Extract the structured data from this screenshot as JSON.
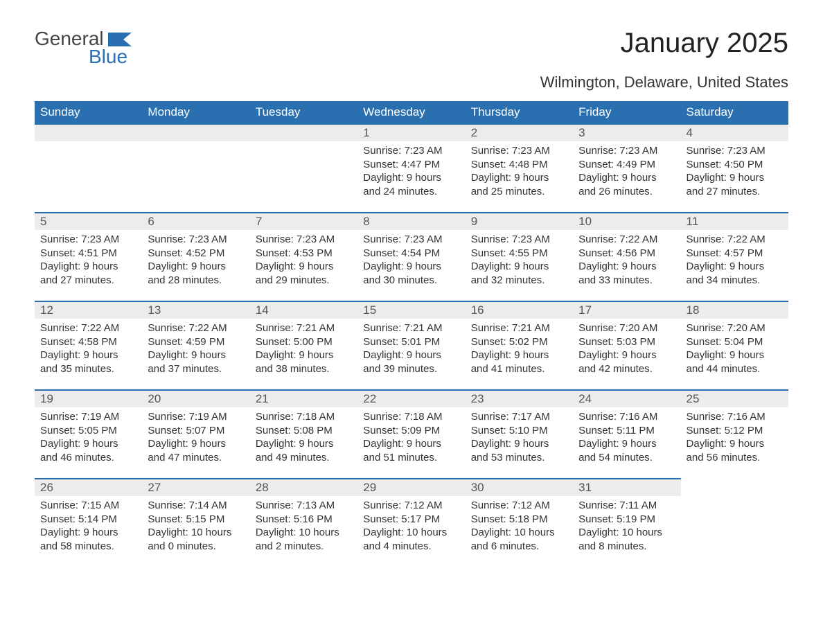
{
  "brand": {
    "word1": "General",
    "word2": "Blue"
  },
  "title": "January 2025",
  "subtitle": "Wilmington, Delaware, United States",
  "colors": {
    "header_bg": "#2a6fb0",
    "header_text": "#ffffff",
    "daynum_bg": "#ececec",
    "daynum_border": "#2a6fb0",
    "body_text": "#333333",
    "page_bg": "#ffffff",
    "logo_gray": "#444444",
    "logo_blue": "#2a6fb0"
  },
  "weekdays": [
    "Sunday",
    "Monday",
    "Tuesday",
    "Wednesday",
    "Thursday",
    "Friday",
    "Saturday"
  ],
  "weeks": [
    [
      null,
      null,
      null,
      {
        "n": "1",
        "sunrise": "7:23 AM",
        "sunset": "4:47 PM",
        "daylight": "9 hours and 24 minutes."
      },
      {
        "n": "2",
        "sunrise": "7:23 AM",
        "sunset": "4:48 PM",
        "daylight": "9 hours and 25 minutes."
      },
      {
        "n": "3",
        "sunrise": "7:23 AM",
        "sunset": "4:49 PM",
        "daylight": "9 hours and 26 minutes."
      },
      {
        "n": "4",
        "sunrise": "7:23 AM",
        "sunset": "4:50 PM",
        "daylight": "9 hours and 27 minutes."
      }
    ],
    [
      {
        "n": "5",
        "sunrise": "7:23 AM",
        "sunset": "4:51 PM",
        "daylight": "9 hours and 27 minutes."
      },
      {
        "n": "6",
        "sunrise": "7:23 AM",
        "sunset": "4:52 PM",
        "daylight": "9 hours and 28 minutes."
      },
      {
        "n": "7",
        "sunrise": "7:23 AM",
        "sunset": "4:53 PM",
        "daylight": "9 hours and 29 minutes."
      },
      {
        "n": "8",
        "sunrise": "7:23 AM",
        "sunset": "4:54 PM",
        "daylight": "9 hours and 30 minutes."
      },
      {
        "n": "9",
        "sunrise": "7:23 AM",
        "sunset": "4:55 PM",
        "daylight": "9 hours and 32 minutes."
      },
      {
        "n": "10",
        "sunrise": "7:22 AM",
        "sunset": "4:56 PM",
        "daylight": "9 hours and 33 minutes."
      },
      {
        "n": "11",
        "sunrise": "7:22 AM",
        "sunset": "4:57 PM",
        "daylight": "9 hours and 34 minutes."
      }
    ],
    [
      {
        "n": "12",
        "sunrise": "7:22 AM",
        "sunset": "4:58 PM",
        "daylight": "9 hours and 35 minutes."
      },
      {
        "n": "13",
        "sunrise": "7:22 AM",
        "sunset": "4:59 PM",
        "daylight": "9 hours and 37 minutes."
      },
      {
        "n": "14",
        "sunrise": "7:21 AM",
        "sunset": "5:00 PM",
        "daylight": "9 hours and 38 minutes."
      },
      {
        "n": "15",
        "sunrise": "7:21 AM",
        "sunset": "5:01 PM",
        "daylight": "9 hours and 39 minutes."
      },
      {
        "n": "16",
        "sunrise": "7:21 AM",
        "sunset": "5:02 PM",
        "daylight": "9 hours and 41 minutes."
      },
      {
        "n": "17",
        "sunrise": "7:20 AM",
        "sunset": "5:03 PM",
        "daylight": "9 hours and 42 minutes."
      },
      {
        "n": "18",
        "sunrise": "7:20 AM",
        "sunset": "5:04 PM",
        "daylight": "9 hours and 44 minutes."
      }
    ],
    [
      {
        "n": "19",
        "sunrise": "7:19 AM",
        "sunset": "5:05 PM",
        "daylight": "9 hours and 46 minutes."
      },
      {
        "n": "20",
        "sunrise": "7:19 AM",
        "sunset": "5:07 PM",
        "daylight": "9 hours and 47 minutes."
      },
      {
        "n": "21",
        "sunrise": "7:18 AM",
        "sunset": "5:08 PM",
        "daylight": "9 hours and 49 minutes."
      },
      {
        "n": "22",
        "sunrise": "7:18 AM",
        "sunset": "5:09 PM",
        "daylight": "9 hours and 51 minutes."
      },
      {
        "n": "23",
        "sunrise": "7:17 AM",
        "sunset": "5:10 PM",
        "daylight": "9 hours and 53 minutes."
      },
      {
        "n": "24",
        "sunrise": "7:16 AM",
        "sunset": "5:11 PM",
        "daylight": "9 hours and 54 minutes."
      },
      {
        "n": "25",
        "sunrise": "7:16 AM",
        "sunset": "5:12 PM",
        "daylight": "9 hours and 56 minutes."
      }
    ],
    [
      {
        "n": "26",
        "sunrise": "7:15 AM",
        "sunset": "5:14 PM",
        "daylight": "9 hours and 58 minutes."
      },
      {
        "n": "27",
        "sunrise": "7:14 AM",
        "sunset": "5:15 PM",
        "daylight": "10 hours and 0 minutes."
      },
      {
        "n": "28",
        "sunrise": "7:13 AM",
        "sunset": "5:16 PM",
        "daylight": "10 hours and 2 minutes."
      },
      {
        "n": "29",
        "sunrise": "7:12 AM",
        "sunset": "5:17 PM",
        "daylight": "10 hours and 4 minutes."
      },
      {
        "n": "30",
        "sunrise": "7:12 AM",
        "sunset": "5:18 PM",
        "daylight": "10 hours and 6 minutes."
      },
      {
        "n": "31",
        "sunrise": "7:11 AM",
        "sunset": "5:19 PM",
        "daylight": "10 hours and 8 minutes."
      },
      null
    ]
  ],
  "labels": {
    "sunrise": "Sunrise:",
    "sunset": "Sunset:",
    "daylight": "Daylight:"
  }
}
